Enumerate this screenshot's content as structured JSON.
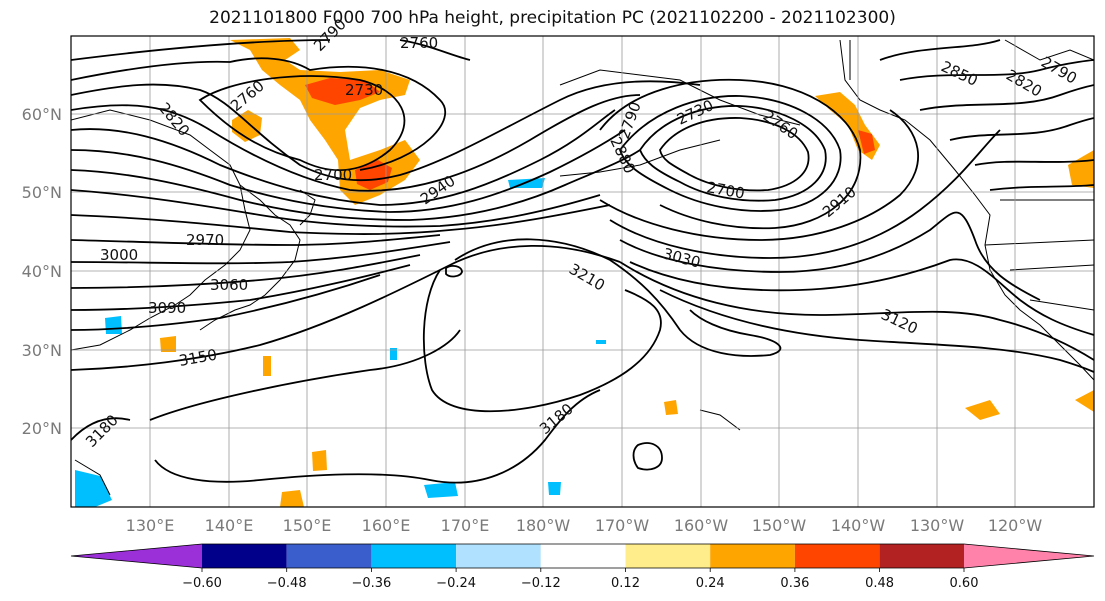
{
  "title": "2021101800 F000 700 hPa height, precipitation PC (2021102200 - 2021102300)",
  "map": {
    "lat_labels": [
      "60°N",
      "50°N",
      "40°N",
      "30°N",
      "20°N"
    ],
    "lon_labels": [
      "130°E",
      "140°E",
      "150°E",
      "160°E",
      "170°E",
      "180°W",
      "170°W",
      "160°W",
      "150°W",
      "140°W",
      "130°W",
      "120°W"
    ],
    "contour_labels": [
      "2790",
      "2760",
      "2760",
      "2730",
      "2820",
      "2790",
      "2730",
      "2760",
      "2850",
      "2820",
      "2790",
      "2880",
      "2700",
      "2940",
      "2700",
      "2910",
      "2970",
      "3000",
      "3030",
      "3060",
      "3210",
      "3090",
      "3120",
      "3150",
      "3180",
      "3180"
    ]
  },
  "colorbar": {
    "ticks": [
      "−0.60",
      "−0.48",
      "−0.36",
      "−0.24",
      "−0.12",
      "0.12",
      "0.24",
      "0.36",
      "0.48",
      "0.60"
    ],
    "colors": [
      "#9b30d9",
      "#00008b",
      "#3a5fcd",
      "#00bfff",
      "#b0e2ff",
      "#ffffff",
      "#ffec8b",
      "#ffa500",
      "#ff4500",
      "#b22222",
      "#ff82ab"
    ]
  }
}
